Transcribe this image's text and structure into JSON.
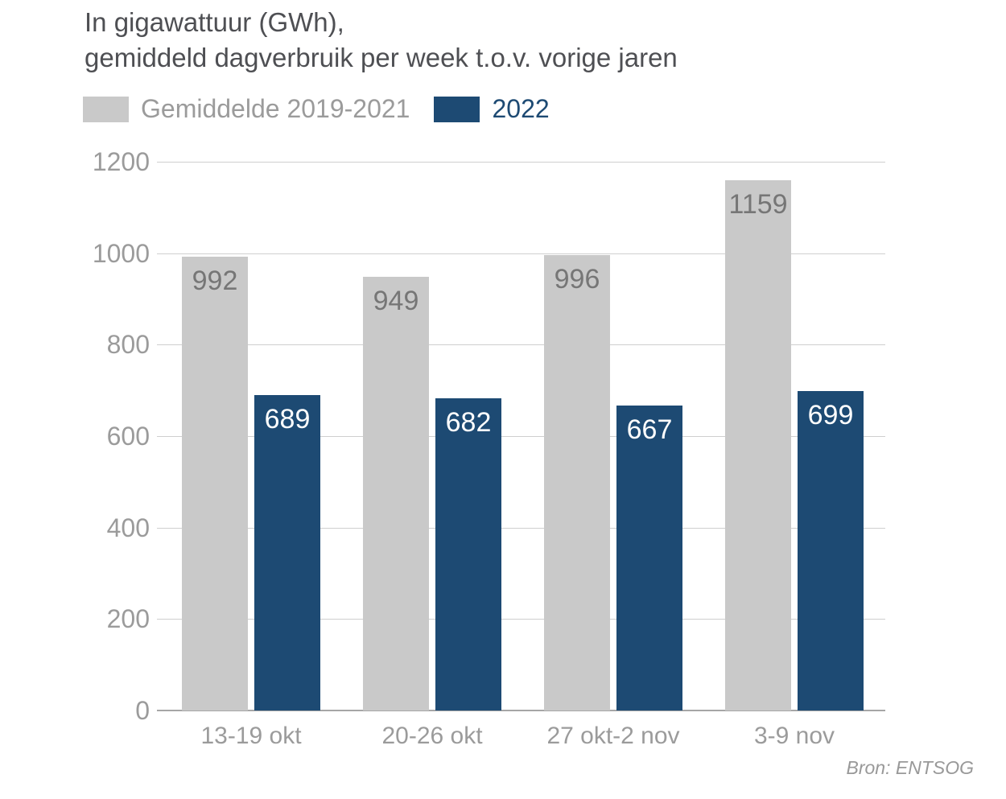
{
  "title": {
    "line1": "In gigawattuur (GWh),",
    "line2": "gemiddeld dagverbruik per week t.o.v. vorige jaren"
  },
  "legend": {
    "items": [
      {
        "label": "Gemiddelde 2019-2021",
        "swatch_color": "#c9c9c9",
        "label_color": "#9b9b9b"
      },
      {
        "label": "2022",
        "swatch_color": "#1d4a73",
        "label_color": "#1d4a73"
      }
    ]
  },
  "source": "Bron: ENTSOG",
  "colors": {
    "bar_gray": "#c9c9c9",
    "bar_blue": "#1d4a73",
    "gridline": "#cfcfcf",
    "baseline": "#a6a6a6",
    "axis_text": "#9b9b9b",
    "title_text": "#4e4f53",
    "value_label_on_gray": "#767676",
    "value_label_on_blue": "#ffffff"
  },
  "chart_data": {
    "type": "bar",
    "title": "In gigawattuur (GWh), gemiddeld dagverbruik per week t.o.v. vorige jaren",
    "categories": [
      "13-19 okt",
      "20-26 okt",
      "27 okt-2 nov",
      "3-9 nov"
    ],
    "series": [
      {
        "name": "Gemiddelde 2019-2021",
        "color": "#c9c9c9",
        "label_color": "#767676",
        "values": [
          992,
          949,
          996,
          1159
        ]
      },
      {
        "name": "2022",
        "color": "#1d4a73",
        "label_color": "#ffffff",
        "values": [
          689,
          682,
          667,
          699
        ]
      }
    ],
    "xlabel": "",
    "ylabel": "",
    "ylim": [
      0,
      1200
    ],
    "yticks": [
      0,
      200,
      400,
      600,
      800,
      1000,
      1200
    ],
    "grid": true,
    "legend_position": "top",
    "source": "Bron: ENTSOG"
  }
}
